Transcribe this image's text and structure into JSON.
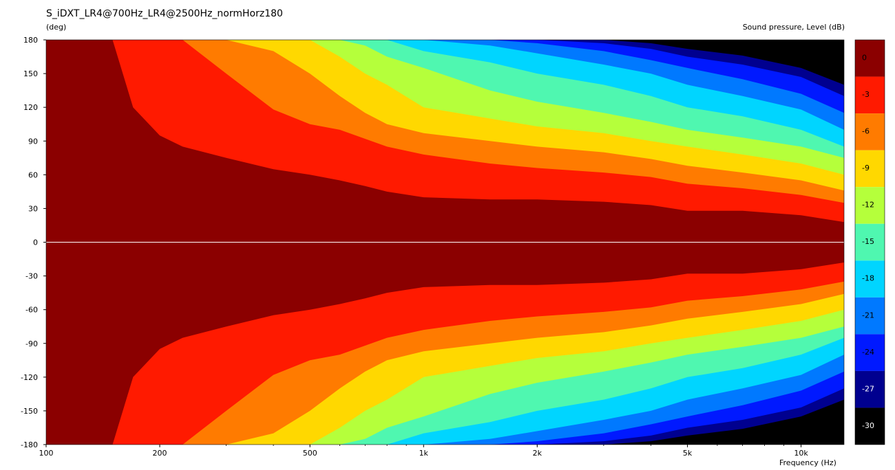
{
  "chart_data": {
    "type": "heatmap",
    "title": "S_iDXT_LR4@700Hz_LR4@2500Hz_normHorz180",
    "y_unit": "(deg)",
    "xlabel": "Frequency",
    "x_unit": "(Hz)",
    "colorbar_title": "Sound pressure, Level  (dB)",
    "x_scale": "log",
    "xlim": [
      100,
      13000
    ],
    "ylim": [
      -180,
      180
    ],
    "x_ticks": [
      {
        "value": 100,
        "label": "100"
      },
      {
        "value": 200,
        "label": "200"
      },
      {
        "value": 500,
        "label": "500"
      },
      {
        "value": 1000,
        "label": "1k"
      },
      {
        "value": 2000,
        "label": "2k"
      },
      {
        "value": 5000,
        "label": "5k"
      },
      {
        "value": 10000,
        "label": "10k"
      }
    ],
    "y_ticks": [
      180,
      150,
      120,
      90,
      60,
      30,
      0,
      -30,
      -60,
      -90,
      -120,
      -150,
      -180
    ],
    "levels": [
      {
        "label": "0",
        "color": "#8b0000"
      },
      {
        "label": "-3",
        "color": "#ff1a00"
      },
      {
        "label": "-6",
        "color": "#ff7b00"
      },
      {
        "label": "-9",
        "color": "#ffd800"
      },
      {
        "label": "-12",
        "color": "#b5ff3b"
      },
      {
        "label": "-15",
        "color": "#4ff7b0"
      },
      {
        "label": "-18",
        "color": "#00d5ff"
      },
      {
        "label": "-21",
        "color": "#0079ff"
      },
      {
        "label": "-24",
        "color": "#0019ff"
      },
      {
        "label": "-27",
        "color": "#00008f"
      },
      {
        "label": "-30",
        "color": "#000000"
      }
    ],
    "contour_boundaries_deg": {
      "frequency_hz": [
        100,
        150,
        170,
        200,
        230,
        300,
        400,
        500,
        600,
        700,
        800,
        1000,
        1500,
        2000,
        3000,
        4000,
        5000,
        7000,
        10000,
        13000
      ],
      "-3": [
        180,
        180,
        120,
        95,
        85,
        75,
        65,
        60,
        55,
        50,
        45,
        40,
        38,
        38,
        36,
        33,
        28,
        28,
        24,
        18
      ],
      "-6": [
        180,
        180,
        180,
        180,
        180,
        150,
        118,
        105,
        100,
        92,
        85,
        78,
        70,
        66,
        62,
        58,
        52,
        48,
        42,
        35
      ],
      "-9": [
        180,
        180,
        180,
        180,
        180,
        180,
        170,
        150,
        130,
        115,
        105,
        97,
        90,
        85,
        80,
        74,
        68,
        62,
        55,
        46
      ],
      "-12": [
        180,
        180,
        180,
        180,
        180,
        180,
        180,
        180,
        165,
        150,
        140,
        120,
        110,
        103,
        97,
        90,
        85,
        78,
        70,
        60
      ],
      "-15": [
        180,
        180,
        180,
        180,
        180,
        180,
        180,
        180,
        180,
        175,
        165,
        155,
        135,
        125,
        115,
        107,
        100,
        93,
        85,
        75
      ],
      "-18": [
        180,
        180,
        180,
        180,
        180,
        180,
        180,
        180,
        180,
        180,
        180,
        170,
        160,
        150,
        140,
        130,
        120,
        112,
        100,
        85
      ],
      "-21": [
        180,
        180,
        180,
        180,
        180,
        180,
        180,
        180,
        180,
        180,
        180,
        180,
        175,
        168,
        158,
        150,
        140,
        130,
        118,
        100
      ],
      "-24": [
        180,
        180,
        180,
        180,
        180,
        180,
        180,
        180,
        180,
        180,
        180,
        180,
        180,
        177,
        170,
        162,
        155,
        145,
        132,
        115
      ],
      "-27": [
        180,
        180,
        180,
        180,
        180,
        180,
        180,
        180,
        180,
        180,
        180,
        180,
        180,
        180,
        177,
        172,
        165,
        158,
        147,
        130
      ],
      "-30": [
        180,
        180,
        180,
        180,
        180,
        180,
        180,
        180,
        180,
        180,
        180,
        180,
        180,
        180,
        180,
        177,
        172,
        166,
        155,
        140
      ]
    }
  }
}
